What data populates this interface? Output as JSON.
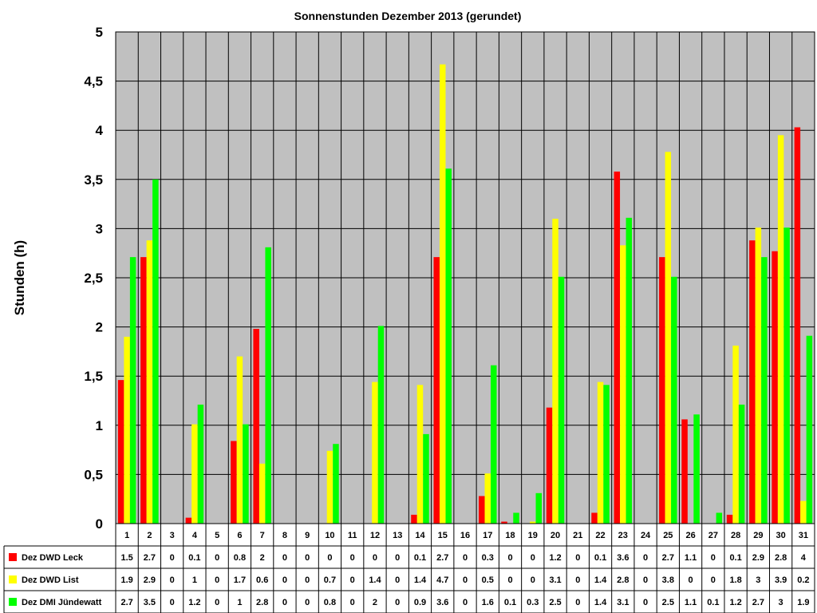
{
  "chart_data": {
    "type": "bar",
    "title": "Sonnenstunden Dezember 2013 (gerundet)",
    "xlabel": "",
    "ylabel": "Stunden (h)",
    "ylim": [
      0,
      5
    ],
    "yticks": [
      "0",
      "0,5",
      "1",
      "1,5",
      "2",
      "2,5",
      "3",
      "3,5",
      "4",
      "4,5",
      "5"
    ],
    "grid": true,
    "legend": "data-table-left",
    "categories": [
      "1",
      "2",
      "3",
      "4",
      "5",
      "6",
      "7",
      "8",
      "9",
      "10",
      "11",
      "12",
      "13",
      "14",
      "15",
      "16",
      "17",
      "18",
      "19",
      "20",
      "21",
      "22",
      "23",
      "24",
      "25",
      "26",
      "27",
      "28",
      "29",
      "30",
      "31"
    ],
    "series": [
      {
        "name": "Dez DWD Leck",
        "color": "#ff0000",
        "values": [
          1.46,
          2.71,
          0,
          0.06,
          0,
          0.84,
          1.98,
          0,
          0,
          0,
          0,
          0,
          0,
          0.09,
          2.71,
          0,
          0.28,
          0.02,
          0,
          1.18,
          0,
          0.11,
          3.58,
          0,
          2.71,
          1.06,
          0,
          0.09,
          2.88,
          2.77,
          4.03
        ],
        "labels": [
          "1.5",
          "2.7",
          "0",
          "0.1",
          "0",
          "0.8",
          "2",
          "0",
          "0",
          "0",
          "0",
          "0",
          "0",
          "0.1",
          "2.7",
          "0",
          "0.3",
          "0",
          "0",
          "1.2",
          "0",
          "0.1",
          "3.6",
          "0",
          "2.7",
          "1.1",
          "0",
          "0.1",
          "2.9",
          "2.8",
          "4"
        ]
      },
      {
        "name": "Dez DWD List",
        "color": "#ffff00",
        "values": [
          1.9,
          2.88,
          0,
          1.01,
          0,
          1.7,
          0.61,
          0,
          0,
          0.74,
          0,
          1.44,
          0,
          1.41,
          4.67,
          0,
          0.51,
          0,
          0.02,
          3.1,
          0,
          1.44,
          2.83,
          0,
          3.78,
          0,
          0,
          1.81,
          3.01,
          3.95,
          0.23
        ],
        "labels": [
          "1.9",
          "2.9",
          "0",
          "1",
          "0",
          "1.7",
          "0.6",
          "0",
          "0",
          "0.7",
          "0",
          "1.4",
          "0",
          "1.4",
          "4.7",
          "0",
          "0.5",
          "0",
          "0",
          "3.1",
          "0",
          "1.4",
          "2.8",
          "0",
          "3.8",
          "0",
          "0",
          "1.8",
          "3",
          "3.9",
          "0.2"
        ]
      },
      {
        "name": "Dez DMI Jündewatt",
        "color": "#00ff00",
        "values": [
          2.71,
          3.5,
          0,
          1.21,
          0,
          1.01,
          2.81,
          0,
          0,
          0.81,
          0,
          2.01,
          0,
          0.91,
          3.61,
          0,
          1.61,
          0.11,
          0.31,
          2.51,
          0,
          1.41,
          3.11,
          0,
          2.51,
          1.11,
          0.11,
          1.21,
          2.71,
          3.01,
          1.91
        ],
        "labels": [
          "2.7",
          "3.5",
          "0",
          "1.2",
          "0",
          "1",
          "2.8",
          "0",
          "0",
          "0.8",
          "0",
          "2",
          "0",
          "0.9",
          "3.6",
          "0",
          "1.6",
          "0.1",
          "0.3",
          "2.5",
          "0",
          "1.4",
          "3.1",
          "0",
          "2.5",
          "1.1",
          "0.1",
          "1.2",
          "2.7",
          "3",
          "1.9"
        ]
      }
    ]
  }
}
